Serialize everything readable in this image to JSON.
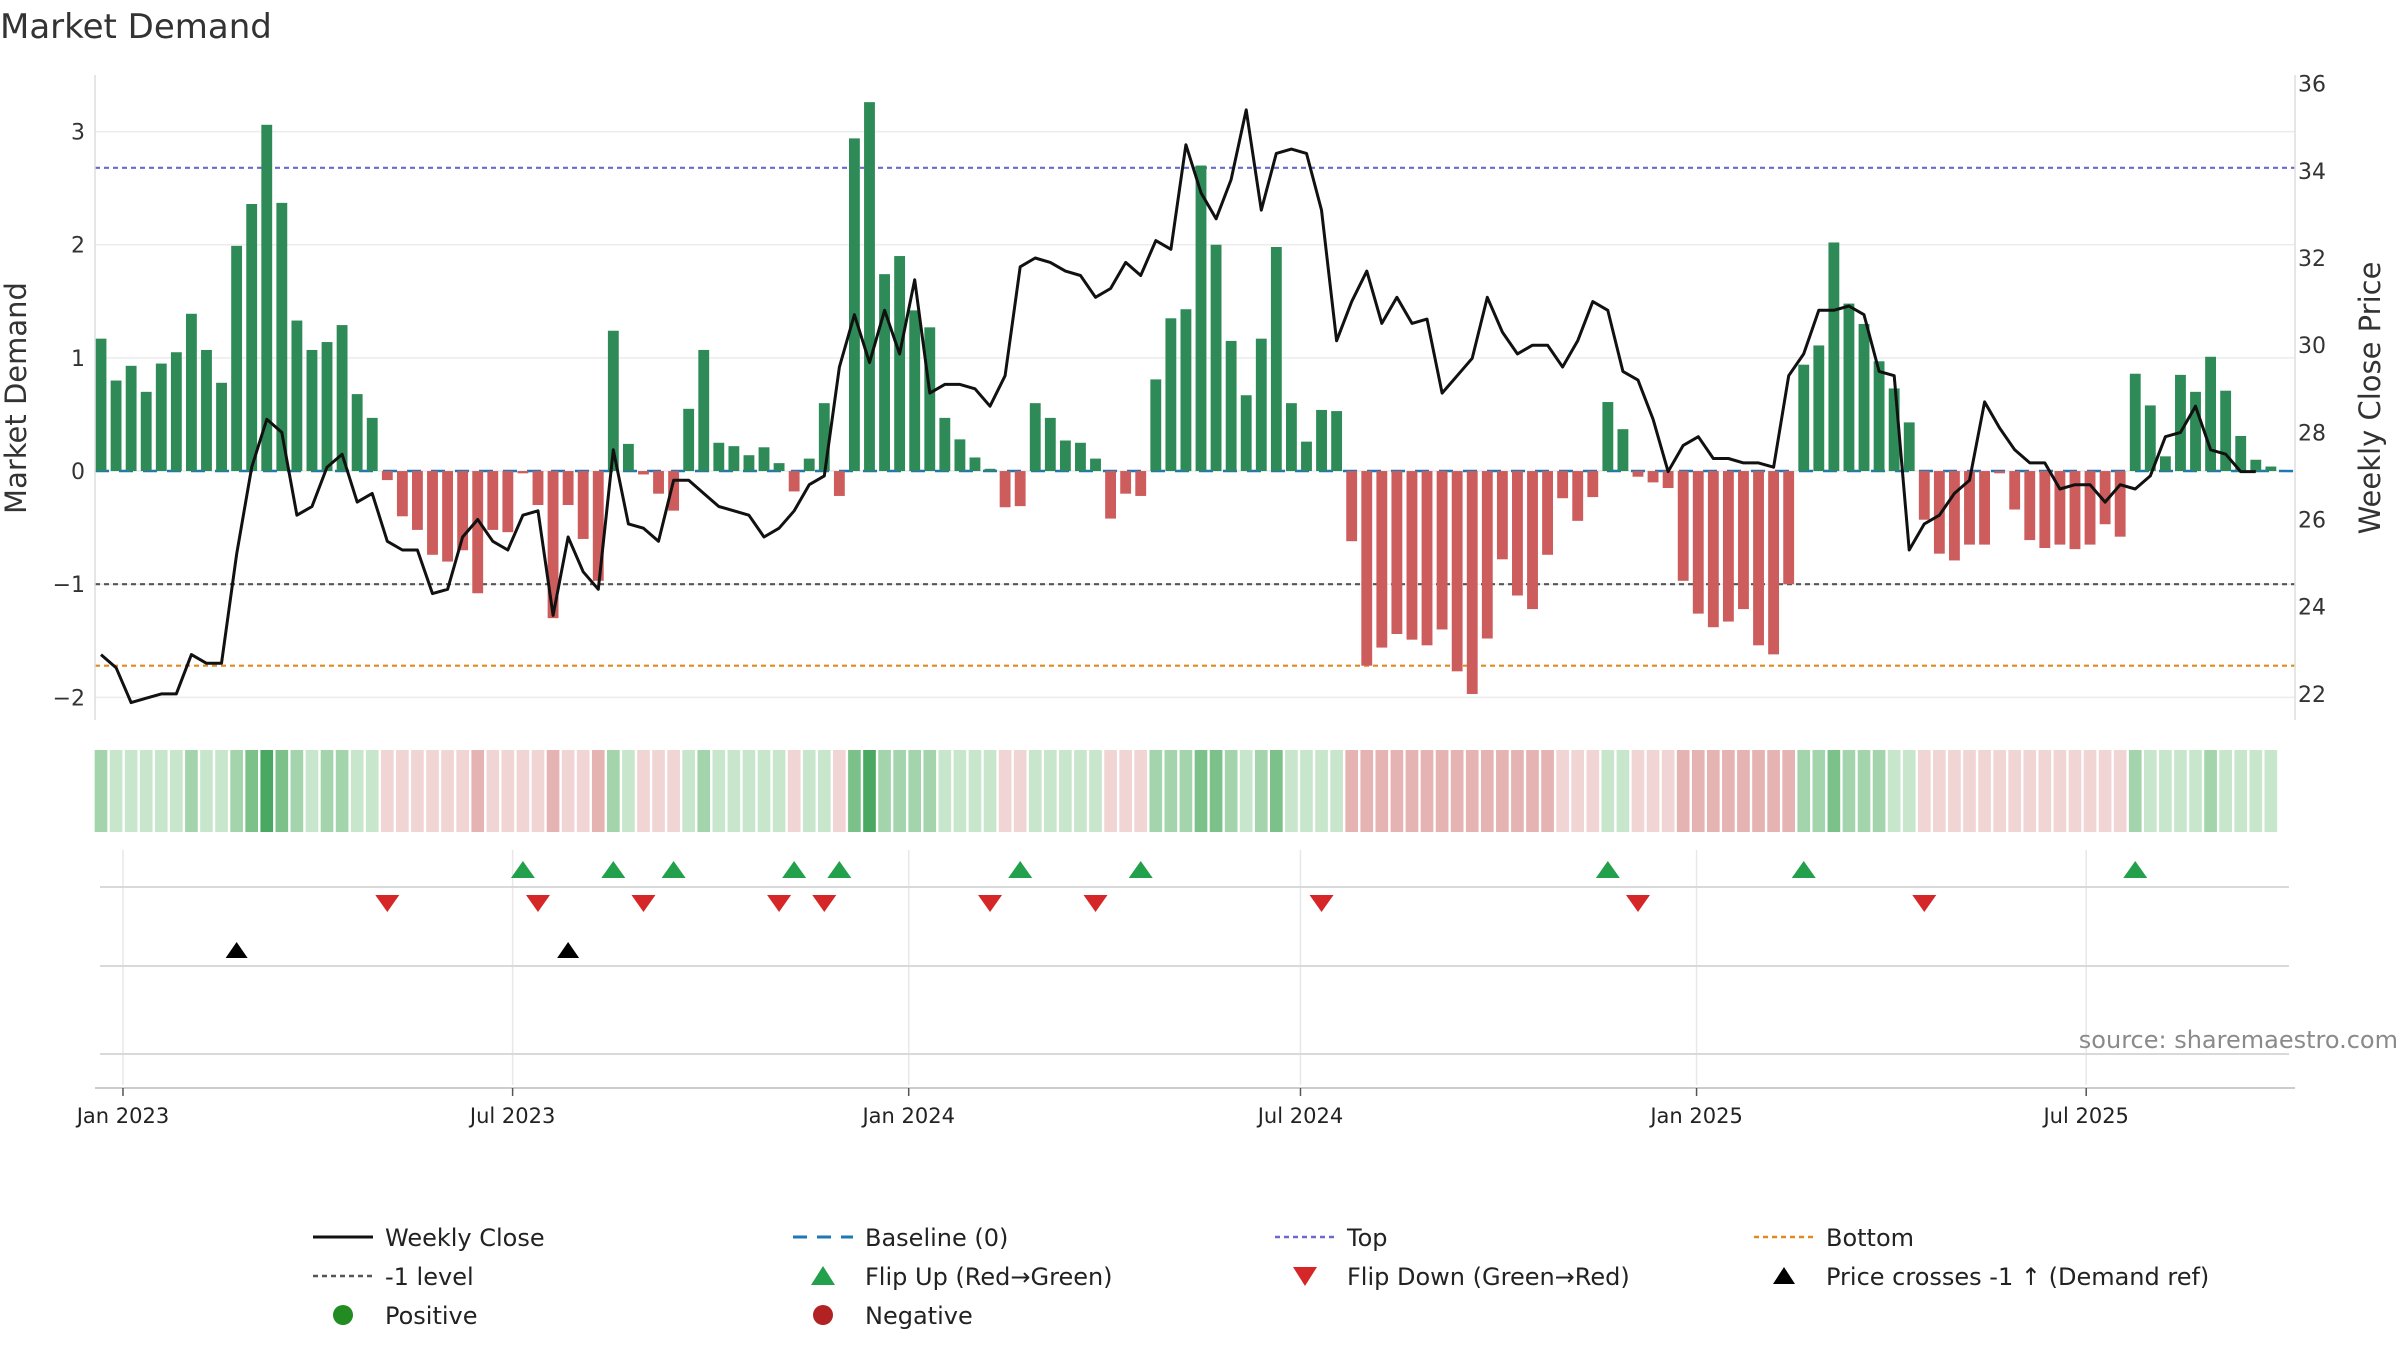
{
  "chart_data": {
    "type": "bar",
    "title": "Market Demand",
    "ylabel": "Market Demand",
    "y2label": "Weekly Close Price",
    "source": "source: sharemaestro.com",
    "ylim": [
      -2.2,
      3.5
    ],
    "y2lim": [
      21.4,
      36.2
    ],
    "yticks": [
      "−2",
      "−1",
      "0",
      "1",
      "2",
      "3"
    ],
    "ytick_values": [
      -2,
      -1,
      0,
      1,
      2,
      3
    ],
    "y2ticks": [
      "22",
      "24",
      "26",
      "28",
      "30",
      "32",
      "34",
      "36"
    ],
    "y2tick_values": [
      22,
      24,
      26,
      28,
      30,
      32,
      34,
      36
    ],
    "x_start": "2022-12-19",
    "x_end": "2025-10-06",
    "x_first_week": "2022-12-19",
    "x_ticks": [
      {
        "label": "Jan 2023",
        "date": "2023-01-01"
      },
      {
        "label": "Jul 2023",
        "date": "2023-07-01"
      },
      {
        "label": "Jan 2024",
        "date": "2024-01-01"
      },
      {
        "label": "Jul 2024",
        "date": "2024-07-01"
      },
      {
        "label": "Jan 2025",
        "date": "2025-01-01"
      },
      {
        "label": "Jul 2025",
        "date": "2025-07-01"
      }
    ],
    "reference_lines": {
      "top": 2.68,
      "minus_one": -1,
      "bottom": -1.72,
      "baseline": 0
    },
    "demand": [
      1.17,
      0.8,
      0.93,
      0.7,
      0.95,
      1.05,
      1.39,
      1.07,
      0.78,
      1.99,
      2.36,
      3.06,
      2.37,
      1.33,
      1.07,
      1.14,
      1.29,
      0.68,
      0.47,
      -0.08,
      -0.4,
      -0.52,
      -0.74,
      -0.8,
      -0.7,
      -1.08,
      -0.52,
      -0.54,
      -0.02,
      -0.3,
      -1.3,
      -0.3,
      -0.6,
      -0.97,
      1.24,
      0.24,
      -0.03,
      -0.2,
      -0.35,
      0.55,
      1.07,
      0.25,
      0.22,
      0.14,
      0.21,
      0.07,
      -0.18,
      0.11,
      0.6,
      -0.22,
      2.94,
      3.26,
      1.74,
      1.9,
      1.42,
      1.27,
      0.47,
      0.28,
      0.12,
      0.02,
      -0.32,
      -0.31,
      0.6,
      0.47,
      0.27,
      0.25,
      0.11,
      -0.42,
      -0.2,
      -0.22,
      0.81,
      1.35,
      1.43,
      2.7,
      2.0,
      1.15,
      0.67,
      1.17,
      1.98,
      0.6,
      0.26,
      0.54,
      0.53,
      -0.62,
      -1.72,
      -1.56,
      -1.44,
      -1.49,
      -1.54,
      -1.4,
      -1.77,
      -1.97,
      -1.48,
      -0.78,
      -1.1,
      -1.22,
      -0.74,
      -0.24,
      -0.44,
      -0.23,
      0.61,
      0.37,
      -0.05,
      -0.1,
      -0.15,
      -0.97,
      -1.26,
      -1.38,
      -1.33,
      -1.22,
      -1.54,
      -1.62,
      -1.0,
      0.94,
      1.11,
      2.02,
      1.48,
      1.3,
      0.97,
      0.73,
      0.43,
      -0.43,
      -0.73,
      -0.79,
      -0.65,
      -0.65,
      -0.02,
      -0.34,
      -0.61,
      -0.68,
      -0.65,
      -0.69,
      -0.65,
      -0.47,
      -0.58,
      0.86,
      0.58,
      0.13,
      0.85,
      0.7,
      1.01,
      0.71,
      0.31,
      0.1,
      0.04
    ],
    "weekly_close": [
      22.9,
      22.6,
      21.8,
      21.9,
      22.0,
      22.0,
      22.9,
      22.7,
      22.7,
      25.2,
      27.2,
      28.3,
      28.0,
      26.1,
      26.3,
      27.2,
      27.5,
      26.4,
      26.6,
      25.5,
      25.3,
      25.3,
      24.3,
      24.4,
      25.6,
      26.0,
      25.5,
      25.3,
      26.1,
      26.2,
      23.8,
      25.6,
      24.8,
      24.4,
      27.6,
      25.9,
      25.8,
      25.5,
      26.9,
      26.9,
      26.6,
      26.3,
      26.2,
      26.1,
      25.6,
      25.8,
      26.2,
      26.8,
      27.0,
      29.5,
      30.7,
      29.6,
      30.8,
      29.8,
      31.5,
      28.9,
      29.1,
      29.1,
      29.0,
      28.6,
      29.3,
      31.8,
      32.0,
      31.9,
      31.7,
      31.6,
      31.1,
      31.3,
      31.9,
      31.6,
      32.4,
      32.2,
      34.6,
      33.5,
      32.9,
      33.8,
      35.4,
      33.1,
      34.4,
      34.5,
      34.4,
      33.1,
      30.1,
      31.0,
      31.7,
      30.5,
      31.1,
      30.5,
      30.6,
      28.9,
      29.3,
      29.7,
      31.1,
      30.3,
      29.8,
      30.0,
      30.0,
      29.5,
      30.1,
      31.0,
      30.8,
      29.4,
      29.2,
      28.3,
      27.1,
      27.7,
      27.9,
      27.4,
      27.4,
      27.3,
      27.3,
      27.2,
      29.3,
      29.8,
      30.8,
      30.8,
      30.9,
      30.7,
      29.4,
      29.3,
      25.3,
      25.9,
      26.1,
      26.6,
      26.9,
      28.7,
      28.1,
      27.6,
      27.3,
      27.3,
      26.7,
      26.8,
      26.8,
      26.4,
      26.8,
      26.7,
      27.0,
      27.9,
      28.0,
      28.6,
      27.6,
      27.5,
      27.1,
      27.1
    ],
    "color_strip_shades": [
      2,
      1,
      1,
      1,
      1,
      1,
      2,
      1,
      1,
      2,
      3,
      4,
      3,
      2,
      1,
      2,
      2,
      1,
      1,
      1,
      1,
      1,
      1,
      1,
      1,
      2,
      1,
      1,
      1,
      1,
      2,
      1,
      1,
      2,
      2,
      1,
      1,
      1,
      1,
      1,
      2,
      1,
      1,
      1,
      1,
      1,
      1,
      1,
      1,
      1,
      3,
      4,
      2,
      2,
      2,
      2,
      1,
      1,
      1,
      1,
      1,
      1,
      1,
      1,
      1,
      1,
      1,
      1,
      1,
      1,
      2,
      2,
      2,
      3,
      3,
      2,
      1,
      2,
      3,
      1,
      1,
      1,
      1,
      2,
      2,
      2,
      2,
      2,
      2,
      2,
      2,
      2,
      2,
      2,
      2,
      2,
      2,
      1,
      1,
      1,
      1,
      1,
      1,
      1,
      1,
      2,
      2,
      2,
      2,
      2,
      2,
      2,
      2,
      2,
      2,
      3,
      2,
      2,
      2,
      1,
      1,
      1,
      1,
      1,
      1,
      1,
      1,
      1,
      1,
      1,
      1,
      1,
      1,
      1,
      1,
      2,
      1,
      1,
      1,
      1,
      2,
      1,
      1,
      1,
      1
    ],
    "flip_up_weeks": [
      28,
      34,
      38,
      46,
      49,
      61,
      69,
      100,
      113,
      135
    ],
    "flip_down_weeks": [
      19,
      29,
      36,
      45,
      48,
      59,
      66,
      81,
      102,
      121
    ],
    "price_cross_weeks": [
      9,
      31
    ],
    "legend": [
      {
        "label": "Weekly Close",
        "symbol": "line-black"
      },
      {
        "label": "Baseline (0)",
        "symbol": "dash-blue"
      },
      {
        "label": "Top",
        "symbol": "dot-purple"
      },
      {
        "label": "Bottom",
        "symbol": "dot-orange"
      },
      {
        "label": "-1 level",
        "symbol": "dot-gray"
      },
      {
        "label": "Flip Up (Red→Green)",
        "symbol": "tri-up-green"
      },
      {
        "label": "Flip Down (Green→Red)",
        "symbol": "tri-down-red"
      },
      {
        "label": "Price crosses -1 ↑ (Demand ref)",
        "symbol": "tri-up-black"
      },
      {
        "label": "Positive",
        "symbol": "dot-green"
      },
      {
        "label": "Negative",
        "symbol": "dot-red"
      }
    ],
    "legend_placement": "bottom",
    "grid": true,
    "colors": {
      "positive_bar": "#2e8b57",
      "negative_bar": "#cd5c5c",
      "close_line": "#111111",
      "baseline": "#1f77b4",
      "top": "#6a6acd",
      "bottom": "#e08a1e",
      "minus_one": "#555555",
      "flip_up": "#22a04b",
      "flip_down": "#d62728",
      "price_cross": "#000000",
      "positive_dot": "#228b22",
      "negative_dot": "#b22222"
    }
  }
}
